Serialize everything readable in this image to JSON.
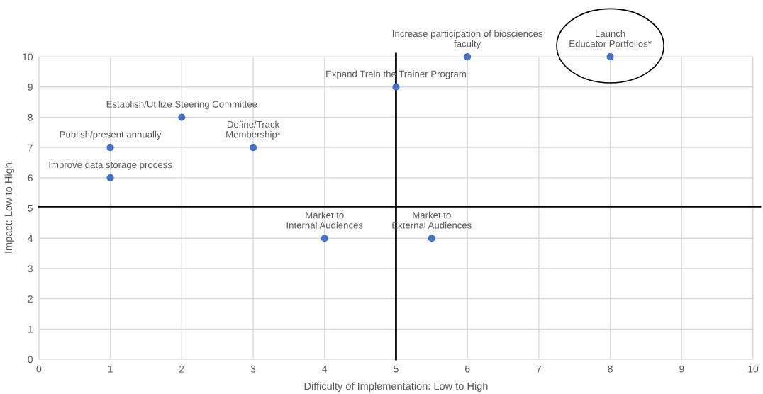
{
  "chart_data": {
    "type": "scatter",
    "xlabel": "Difficulty of Implementation: Low to High",
    "ylabel": "Impact: Low to High",
    "series": [
      {
        "color": "#4472c4",
        "x": [
          1,
          1,
          2,
          3,
          5,
          6,
          8,
          4,
          5.5
        ],
        "values": [
          6,
          7,
          8,
          7,
          9,
          10,
          10,
          4,
          4
        ]
      }
    ],
    "annotations": [
      {
        "text": "Improve data storage process",
        "x": 1,
        "y": 6
      },
      {
        "text": "Publish/present annually",
        "x": 1,
        "y": 7
      },
      {
        "text": "Establish/Utilize Steering Committee",
        "x": 2,
        "y": 8
      },
      {
        "text": "Define/Track\nMembership*",
        "x": 3,
        "y": 7
      },
      {
        "text": "Expand Train the Trainer Program",
        "x": 5,
        "y": 9
      },
      {
        "text": "Increase participation of biosciences\nfaculty",
        "x": 6,
        "y": 10
      },
      {
        "text": "Launch\nEducator Portfolios*",
        "x": 8,
        "y": 10
      },
      {
        "text": "Market to\nInternal Audiences",
        "x": 4,
        "y": 4
      },
      {
        "text": "Market to\nExternal Audiences",
        "x": 5.5,
        "y": 4
      }
    ],
    "ref_lines": [
      {
        "axis": "x",
        "value": 5,
        "color": "#000000"
      },
      {
        "axis": "y",
        "value": 5.05,
        "color": "#000000"
      }
    ],
    "xlim": [
      0,
      10
    ],
    "ylim": [
      0,
      10
    ],
    "xticks": [
      0,
      1,
      2,
      3,
      4,
      5,
      6,
      7,
      8,
      9,
      10
    ],
    "yticks": [
      0,
      1,
      2,
      3,
      4,
      5,
      6,
      7,
      8,
      9,
      10
    ],
    "grid": true,
    "marker": "circle"
  }
}
